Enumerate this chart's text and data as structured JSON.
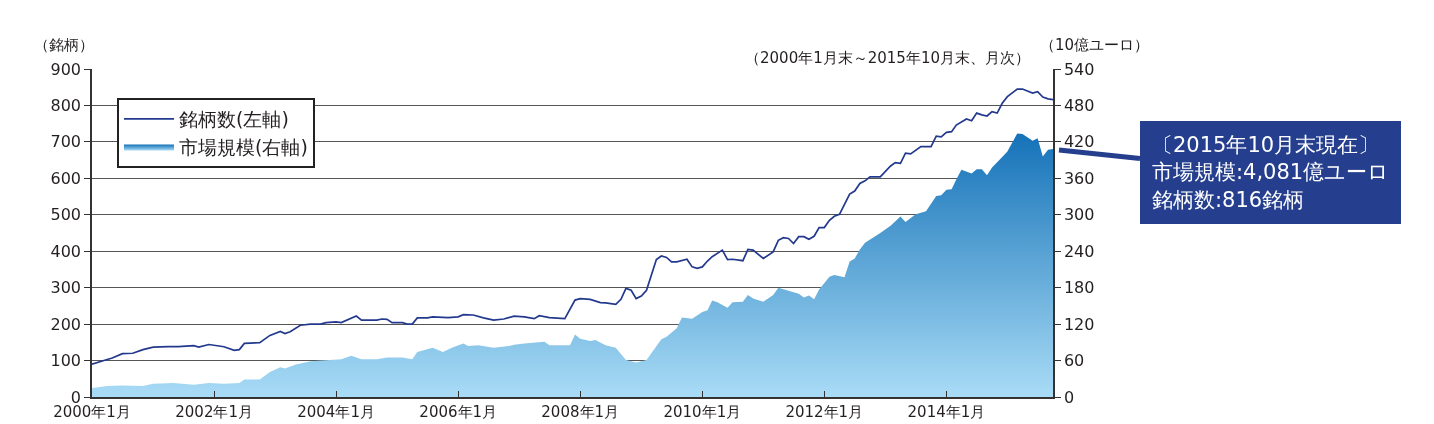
{
  "chart_data": {
    "type": "line",
    "subtitle": "（2000年1月末～2015年10月末、月次）",
    "ylabel": "（銘柄）",
    "y2label": "（10億ユーロ）",
    "annotations": [
      "〔2015年10月末現在〕市場規模:4,081億ユーロ銘柄数:816銘柄"
    ],
    "xlim": [
      "2000-01",
      "2015-10"
    ],
    "xticks": [
      {
        "value": "2000-01",
        "label": "2000年1月"
      },
      {
        "value": "2002-01",
        "label": "2002年1月"
      },
      {
        "value": "2004-01",
        "label": "2004年1月"
      },
      {
        "value": "2006-01",
        "label": "2006年1月"
      },
      {
        "value": "2008-01",
        "label": "2008年1月"
      },
      {
        "value": "2010-01",
        "label": "2010年1月"
      },
      {
        "value": "2012-01",
        "label": "2012年1月"
      },
      {
        "value": "2014-01",
        "label": "2014年1月"
      }
    ],
    "ylim": [
      0,
      900
    ],
    "yticks": [
      0,
      100,
      200,
      300,
      400,
      500,
      600,
      700,
      800,
      900
    ],
    "y2lim": [
      0,
      540
    ],
    "y2ticks": [
      0,
      60,
      120,
      180,
      240,
      300,
      360,
      420,
      480,
      540
    ],
    "grid": "y",
    "legend": "top left",
    "series": [
      {
        "name": "銘柄数(左軸)",
        "color": "#23398e",
        "x": [
          "2000-01",
          "2000-04",
          "2000-05",
          "2000-07",
          "2000-09",
          "2000-11",
          "2001-01",
          "2001-04",
          "2001-06",
          "2001-09",
          "2001-10",
          "2001-12",
          "2002-03",
          "2002-05",
          "2002-06",
          "2002-07",
          "2002-10",
          "2002-12",
          "2003-02",
          "2003-03",
          "2003-04",
          "2003-06",
          "2003-08",
          "2003-10",
          "2003-11",
          "2004-01",
          "2004-02",
          "2004-05",
          "2004-06",
          "2004-09",
          "2004-10",
          "2004-11",
          "2004-12",
          "2005-02",
          "2005-03",
          "2005-04",
          "2005-05",
          "2005-07",
          "2005-08",
          "2005-11",
          "2006-01",
          "2006-02",
          "2006-04",
          "2006-06",
          "2006-08",
          "2006-10",
          "2006-12",
          "2007-02",
          "2007-04",
          "2007-05",
          "2007-07",
          "2007-10",
          "2007-12",
          "2008-01",
          "2008-03",
          "2008-05",
          "2008-06",
          "2008-08",
          "2008-09",
          "2008-10",
          "2008-11",
          "2008-12",
          "2009-01",
          "2009-02",
          "2009-04",
          "2009-05",
          "2009-06",
          "2009-07",
          "2009-08",
          "2009-10",
          "2009-11",
          "2009-12",
          "2010-01",
          "2010-02",
          "2010-03",
          "2010-05",
          "2010-06",
          "2010-07",
          "2010-09",
          "2010-10",
          "2010-11",
          "2011-01",
          "2011-03",
          "2011-04",
          "2011-05",
          "2011-06",
          "2011-07",
          "2011-08",
          "2011-09",
          "2011-10",
          "2011-11",
          "2011-12",
          "2012-01",
          "2012-02",
          "2012-03",
          "2012-04",
          "2012-06",
          "2012-07",
          "2012-08",
          "2012-09",
          "2012-10",
          "2012-12",
          "2013-02",
          "2013-03",
          "2013-04",
          "2013-05",
          "2013-06",
          "2013-08",
          "2013-10",
          "2013-11",
          "2013-12",
          "2014-01",
          "2014-02",
          "2014-03",
          "2014-05",
          "2014-06",
          "2014-07",
          "2014-08",
          "2014-09",
          "2014-10",
          "2014-11",
          "2014-12",
          "2015-01",
          "2015-03",
          "2015-04",
          "2015-06",
          "2015-07",
          "2015-08",
          "2015-09",
          "2015-10"
        ],
        "values": [
          90,
          103,
          107,
          119,
          120,
          130,
          137,
          138,
          138,
          141,
          137,
          144,
          138,
          128,
          130,
          147,
          149,
          169,
          180,
          174,
          179,
          197,
          200,
          200,
          204,
          206,
          204,
          222,
          211,
          211,
          214,
          213,
          204,
          204,
          200,
          200,
          217,
          217,
          220,
          218,
          220,
          226,
          225,
          217,
          211,
          214,
          222,
          220,
          215,
          223,
          218,
          215,
          266,
          270,
          268,
          259,
          258,
          254,
          268,
          298,
          293,
          270,
          277,
          293,
          377,
          387,
          383,
          371,
          371,
          378,
          357,
          353,
          357,
          373,
          385,
          403,
          377,
          378,
          374,
          405,
          403,
          380,
          398,
          430,
          437,
          435,
          421,
          440,
          440,
          433,
          441,
          465,
          465,
          485,
          496,
          501,
          557,
          565,
          586,
          593,
          604,
          604,
          634,
          643,
          641,
          669,
          667,
          687,
          687,
          716,
          714,
          726,
          728,
          746,
          763,
          758,
          779,
          774,
          771,
          783,
          779,
          806,
          824,
          845,
          845,
          834,
          838,
          823,
          818,
          816
        ]
      },
      {
        "name": "市場規模(右軸)",
        "type": "area",
        "axis": "y2",
        "color": "#1572b8",
        "x": [
          "2000-01",
          "2000-04",
          "2000-07",
          "2000-11",
          "2001-01",
          "2001-05",
          "2001-09",
          "2001-12",
          "2002-03",
          "2002-06",
          "2002-07",
          "2002-10",
          "2002-12",
          "2003-02",
          "2003-03",
          "2003-05",
          "2003-08",
          "2004-02",
          "2004-04",
          "2004-06",
          "2004-09",
          "2004-11",
          "2005-02",
          "2005-04",
          "2005-05",
          "2005-08",
          "2005-10",
          "2005-12",
          "2006-02",
          "2006-03",
          "2006-05",
          "2006-08",
          "2006-11",
          "2006-12",
          "2007-02",
          "2007-06",
          "2007-07",
          "2007-11",
          "2007-12",
          "2008-01",
          "2008-03",
          "2008-04",
          "2008-06",
          "2008-08",
          "2008-10",
          "2008-12",
          "2009-02",
          "2009-05",
          "2009-06",
          "2009-08",
          "2009-09",
          "2009-11",
          "2010-01",
          "2010-02",
          "2010-03",
          "2010-04",
          "2010-06",
          "2010-07",
          "2010-09",
          "2010-10",
          "2010-11",
          "2011-01",
          "2011-03",
          "2011-04",
          "2011-06",
          "2011-08",
          "2011-09",
          "2011-10",
          "2011-11",
          "2011-12",
          "2012-02",
          "2012-03",
          "2012-05",
          "2012-06",
          "2012-07",
          "2012-08",
          "2012-09",
          "2012-12",
          "2013-02",
          "2013-04",
          "2013-05",
          "2013-07",
          "2013-09",
          "2013-11",
          "2013-12",
          "2014-01",
          "2014-02",
          "2014-03",
          "2014-04",
          "2014-06",
          "2014-07",
          "2014-08",
          "2014-09",
          "2014-10",
          "2014-12",
          "2015-01",
          "2015-03",
          "2015-04",
          "2015-06",
          "2015-07",
          "2015-08",
          "2015-09",
          "2015-10"
        ],
        "values": [
          15,
          18,
          19,
          18,
          22,
          23,
          20,
          23,
          22,
          23,
          29,
          29,
          41,
          49,
          47,
          53,
          59,
          62,
          68,
          62,
          62,
          65,
          65,
          62,
          74,
          81,
          74,
          82,
          88,
          84,
          85,
          81,
          84,
          86,
          88,
          91,
          85,
          85,
          103,
          96,
          92,
          94,
          85,
          81,
          61,
          57,
          61,
          95,
          99,
          113,
          131,
          129,
          140,
          143,
          159,
          156,
          147,
          156,
          157,
          168,
          162,
          157,
          168,
          180,
          175,
          170,
          164,
          167,
          161,
          177,
          198,
          201,
          197,
          223,
          228,
          243,
          254,
          270,
          282,
          297,
          288,
          301,
          306,
          331,
          332,
          341,
          342,
          358,
          374,
          368,
          375,
          375,
          365,
          378,
          395,
          404,
          434,
          433,
          422,
          426,
          396,
          407,
          408.1
        ]
      }
    ]
  }
}
